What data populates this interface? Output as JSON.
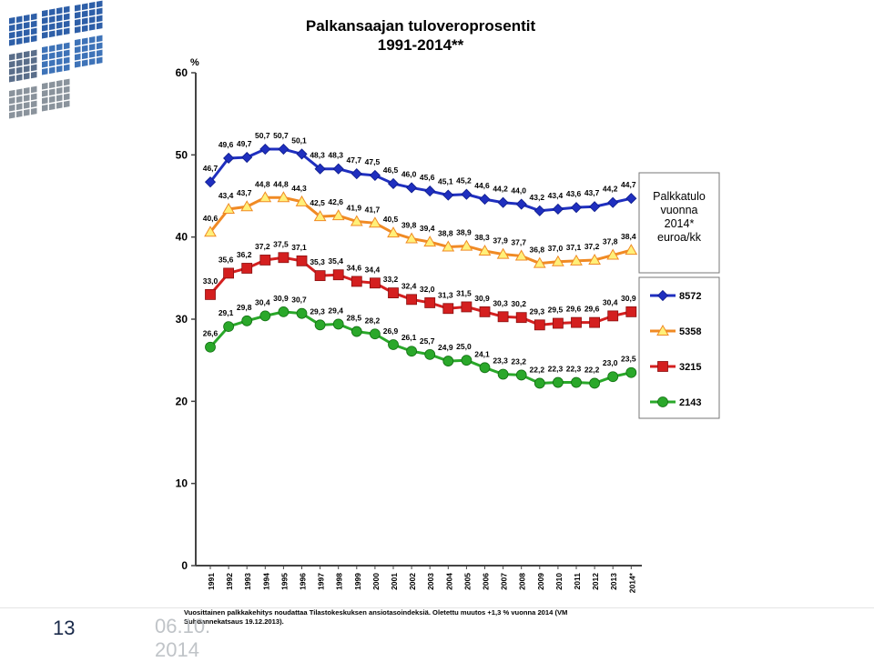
{
  "slide": {
    "page_number": "13",
    "date": "06.10.\n2014"
  },
  "chart_data": {
    "type": "line",
    "title": "Palkansaajan tuloveroprosentit",
    "subtitle": "1991-2014**",
    "ylabel": "%",
    "ylim": [
      0,
      60
    ],
    "yticks": [
      0,
      10,
      20,
      30,
      40,
      50,
      60
    ],
    "grid": false,
    "categories": [
      "1991",
      "1992",
      "1993",
      "1994",
      "1995",
      "1996",
      "1997",
      "1998",
      "1999",
      "2000",
      "2001",
      "2002",
      "2003",
      "2004",
      "2005",
      "2006",
      "2007",
      "2008",
      "2009",
      "2010",
      "2011",
      "2012",
      "2013",
      "2014*"
    ],
    "series": [
      {
        "name": "8572",
        "color": "#1f2fbf",
        "marker": "diamond",
        "values": [
          46.7,
          49.6,
          49.7,
          50.7,
          50.7,
          50.1,
          48.3,
          48.3,
          47.7,
          47.5,
          46.5,
          46.0,
          45.6,
          45.1,
          45.2,
          44.6,
          44.2,
          44.0,
          43.2,
          43.4,
          43.6,
          43.7,
          44.2,
          44.7
        ],
        "labels": [
          "46,7",
          "49,6",
          "49,7",
          "50,7",
          "50,7",
          "50,1",
          "48,3",
          "48,3",
          "47,7",
          "47,5",
          "46,5",
          "46,0",
          "45,6",
          "45,1",
          "45,2",
          "44,6",
          "44,2",
          "44,0",
          "43,2",
          "43,4",
          "43,6",
          "43,7",
          "44,2",
          "44,7"
        ]
      },
      {
        "name": "5358",
        "color": "#f08a24",
        "marker": "triangle",
        "fill": "#fff07a",
        "values": [
          40.6,
          43.4,
          43.7,
          44.8,
          44.8,
          44.3,
          42.5,
          42.6,
          41.9,
          41.7,
          40.5,
          39.8,
          39.4,
          38.8,
          38.9,
          38.3,
          37.9,
          37.7,
          36.8,
          37.0,
          37.1,
          37.2,
          37.8,
          38.4
        ],
        "labels": [
          "40,6",
          "43,4",
          "43,7",
          "44,8",
          "44,8",
          "44,3",
          "42,5",
          "42,6",
          "41,9",
          "41,7",
          "40,5",
          "39,8",
          "39,4",
          "38,8",
          "38,9",
          "38,3",
          "37,9",
          "37,7",
          "36,8",
          "37,0",
          "37,1",
          "37,2",
          "37,8",
          "38,4"
        ]
      },
      {
        "name": "3215",
        "color": "#d41f1f",
        "marker": "square",
        "values": [
          33.0,
          35.6,
          36.2,
          37.2,
          37.5,
          37.1,
          35.3,
          35.4,
          34.6,
          34.4,
          33.2,
          32.4,
          32.0,
          31.3,
          31.5,
          30.9,
          30.3,
          30.2,
          29.3,
          29.5,
          29.6,
          29.6,
          30.4,
          30.9
        ],
        "labels": [
          "33,0",
          "35,6",
          "36,2",
          "37,2",
          "37,5",
          "37,1",
          "35,3",
          "35,4",
          "34,6",
          "34,4",
          "33,2",
          "32,4",
          "32,0",
          "31,3",
          "31,5",
          "30,9",
          "30,3",
          "30,2",
          "29,3",
          "29,5",
          "29,6",
          "29,6",
          "30,4",
          "30,9"
        ]
      },
      {
        "name": "2143",
        "color": "#2aa82a",
        "marker": "circle",
        "values": [
          26.6,
          29.1,
          29.8,
          30.4,
          30.9,
          30.7,
          29.3,
          29.4,
          28.5,
          28.2,
          26.9,
          26.1,
          25.7,
          24.9,
          25.0,
          24.1,
          23.3,
          23.2,
          22.2,
          22.3,
          22.3,
          22.2,
          23.0,
          23.5
        ],
        "labels": [
          "26,6",
          "29,1",
          "29,8",
          "30,4",
          "30,9",
          "30,7",
          "29,3",
          "29,4",
          "28,5",
          "28,2",
          "26,9",
          "26,1",
          "25,7",
          "24,9",
          "25,0",
          "24,1",
          "23,3",
          "23,2",
          "22,2",
          "22,3",
          "22,3",
          "22,2",
          "23,0",
          "23,5"
        ]
      }
    ],
    "legend_title": "Palkkatulo vuonna 2014* euroa/kk",
    "legend_title_lines": [
      "Palkkatulo",
      "vuonna",
      "2014*",
      "euroa/kk"
    ],
    "legend_placement": "right",
    "footnote_lines": [
      "Vuosittainen palkkakehitys noudattaa Tilastokeskuksen ansiotasoindeksiä. Oletettu muutos +1,3 % vuonna 2014 (VM",
      "Suhdannekatsaus 19.12.2013)."
    ]
  }
}
